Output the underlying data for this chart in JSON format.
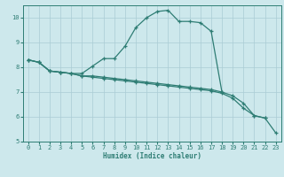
{
  "xlabel": "Humidex (Indice chaleur)",
  "background_color": "#cde8ec",
  "grid_color": "#aaccd4",
  "line_color": "#2e7d74",
  "xlim": [
    -0.5,
    23.5
  ],
  "ylim": [
    5,
    10.5
  ],
  "xticks": [
    0,
    1,
    2,
    3,
    4,
    5,
    6,
    7,
    8,
    9,
    10,
    11,
    12,
    13,
    14,
    15,
    16,
    17,
    18,
    19,
    20,
    21,
    22,
    23
  ],
  "yticks": [
    5,
    6,
    7,
    8,
    9,
    10
  ],
  "lines": [
    {
      "x": [
        0,
        1,
        2,
        3,
        4,
        5,
        6,
        7,
        8,
        9,
        10,
        11,
        12,
        13,
        14,
        15,
        16,
        17,
        18
      ],
      "y": [
        8.3,
        8.2,
        7.85,
        7.8,
        7.75,
        7.75,
        8.05,
        8.35,
        8.35,
        8.85,
        9.6,
        10.0,
        10.25,
        10.3,
        9.85,
        9.85,
        9.8,
        9.45,
        7.0
      ]
    },
    {
      "x": [
        0,
        1,
        2,
        3,
        4,
        5,
        6,
        7,
        8,
        9,
        10,
        11,
        12,
        13,
        14,
        15,
        16,
        17,
        18,
        19,
        20,
        21,
        22
      ],
      "y": [
        8.3,
        8.2,
        7.85,
        7.8,
        7.75,
        7.65,
        7.65,
        7.6,
        7.55,
        7.5,
        7.45,
        7.4,
        7.35,
        7.3,
        7.25,
        7.2,
        7.15,
        7.1,
        7.0,
        6.85,
        6.55,
        6.05,
        5.95
      ]
    },
    {
      "x": [
        0,
        1,
        2,
        3,
        4,
        5,
        6,
        7,
        8,
        9,
        10,
        11,
        12,
        13,
        14,
        15,
        16,
        17,
        18,
        19,
        20,
        21,
        22,
        23
      ],
      "y": [
        8.3,
        8.2,
        7.85,
        7.8,
        7.75,
        7.65,
        7.6,
        7.55,
        7.5,
        7.45,
        7.4,
        7.35,
        7.3,
        7.25,
        7.2,
        7.15,
        7.1,
        7.05,
        6.95,
        6.75,
        6.35,
        6.05,
        5.95,
        5.35
      ]
    }
  ]
}
